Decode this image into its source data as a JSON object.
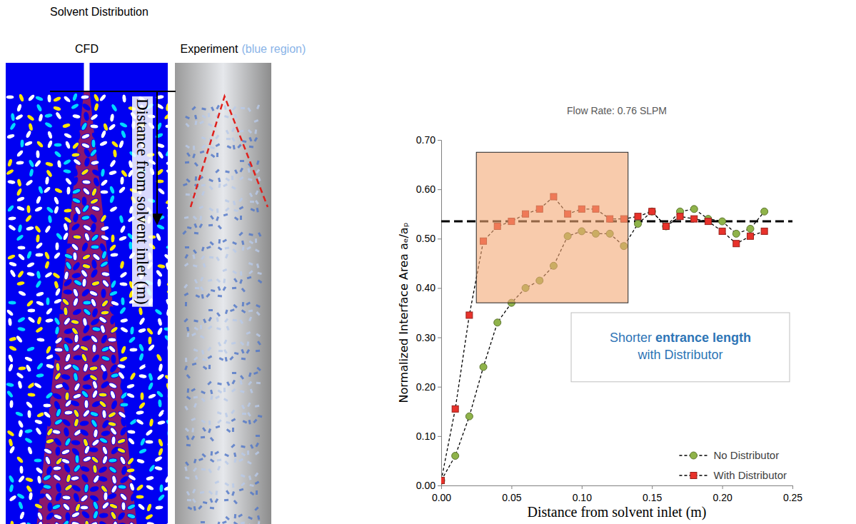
{
  "left_panel": {
    "title": "Solvent Distribution",
    "cfd_label": "CFD",
    "experiment_label": "Experiment",
    "experiment_note": "(blue region)",
    "axis_label": "Distance from solvent inlet (m)"
  },
  "chart_data": {
    "type": "line",
    "title": "Flow Rate: 0.76 SLPM",
    "xlabel": "Distance from solvent inlet (m)",
    "ylabel": "Normalized Interface Area aₑ/aₚ",
    "x": [
      0,
      0.01,
      0.02,
      0.03,
      0.04,
      0.05,
      0.06,
      0.07,
      0.08,
      0.09,
      0.1,
      0.11,
      0.12,
      0.13,
      0.14,
      0.15,
      0.16,
      0.17,
      0.18,
      0.19,
      0.2,
      0.21,
      0.22,
      0.23
    ],
    "series": [
      {
        "name": "No Distributor",
        "color": "#8fb34a",
        "marker": "circle",
        "line_style": "dashed",
        "values": [
          0.01,
          0.06,
          0.14,
          0.24,
          0.33,
          0.37,
          0.4,
          0.415,
          0.445,
          0.505,
          0.515,
          0.51,
          0.51,
          0.485,
          0.53,
          0.555,
          0.525,
          0.555,
          0.56,
          0.54,
          0.535,
          0.51,
          0.52,
          0.555
        ]
      },
      {
        "name": "With Distributor",
        "color": "#e8322b",
        "marker": "square",
        "line_style": "dashed",
        "values": [
          0.01,
          0.155,
          0.345,
          0.495,
          0.525,
          0.535,
          0.55,
          0.56,
          0.585,
          0.55,
          0.56,
          0.56,
          0.54,
          0.54,
          0.545,
          0.555,
          0.525,
          0.545,
          0.54,
          0.535,
          0.515,
          0.49,
          0.505,
          0.515
        ]
      }
    ],
    "reference_line": 0.535,
    "highlight_x": [
      0.025,
      0.133
    ],
    "highlight_y": [
      0.37,
      0.675
    ],
    "annotation": [
      "Shorter",
      "entrance length",
      "with Distributor"
    ],
    "xlim": [
      0,
      0.25
    ],
    "xticks": [
      {
        "value": 0,
        "label": "0.00"
      },
      0.05,
      {
        "value": 0.1,
        "label": "0.10"
      },
      0.15,
      {
        "value": 0.2,
        "label": "0.20"
      },
      0.25
    ],
    "ylim": [
      0,
      0.7
    ],
    "yticks": [
      {
        "value": 0,
        "label": "0.00"
      },
      {
        "value": 0.1,
        "label": "0.10"
      },
      {
        "value": 0.2,
        "label": "0.20"
      },
      {
        "value": 0.3,
        "label": "0.30"
      },
      {
        "value": 0.4,
        "label": "0.40"
      },
      {
        "value": 0.5,
        "label": "0.50"
      },
      {
        "value": 0.6,
        "label": "0.60"
      },
      {
        "value": 0.7,
        "label": "0.70"
      }
    ],
    "grid": false,
    "legend": "lower-right"
  }
}
